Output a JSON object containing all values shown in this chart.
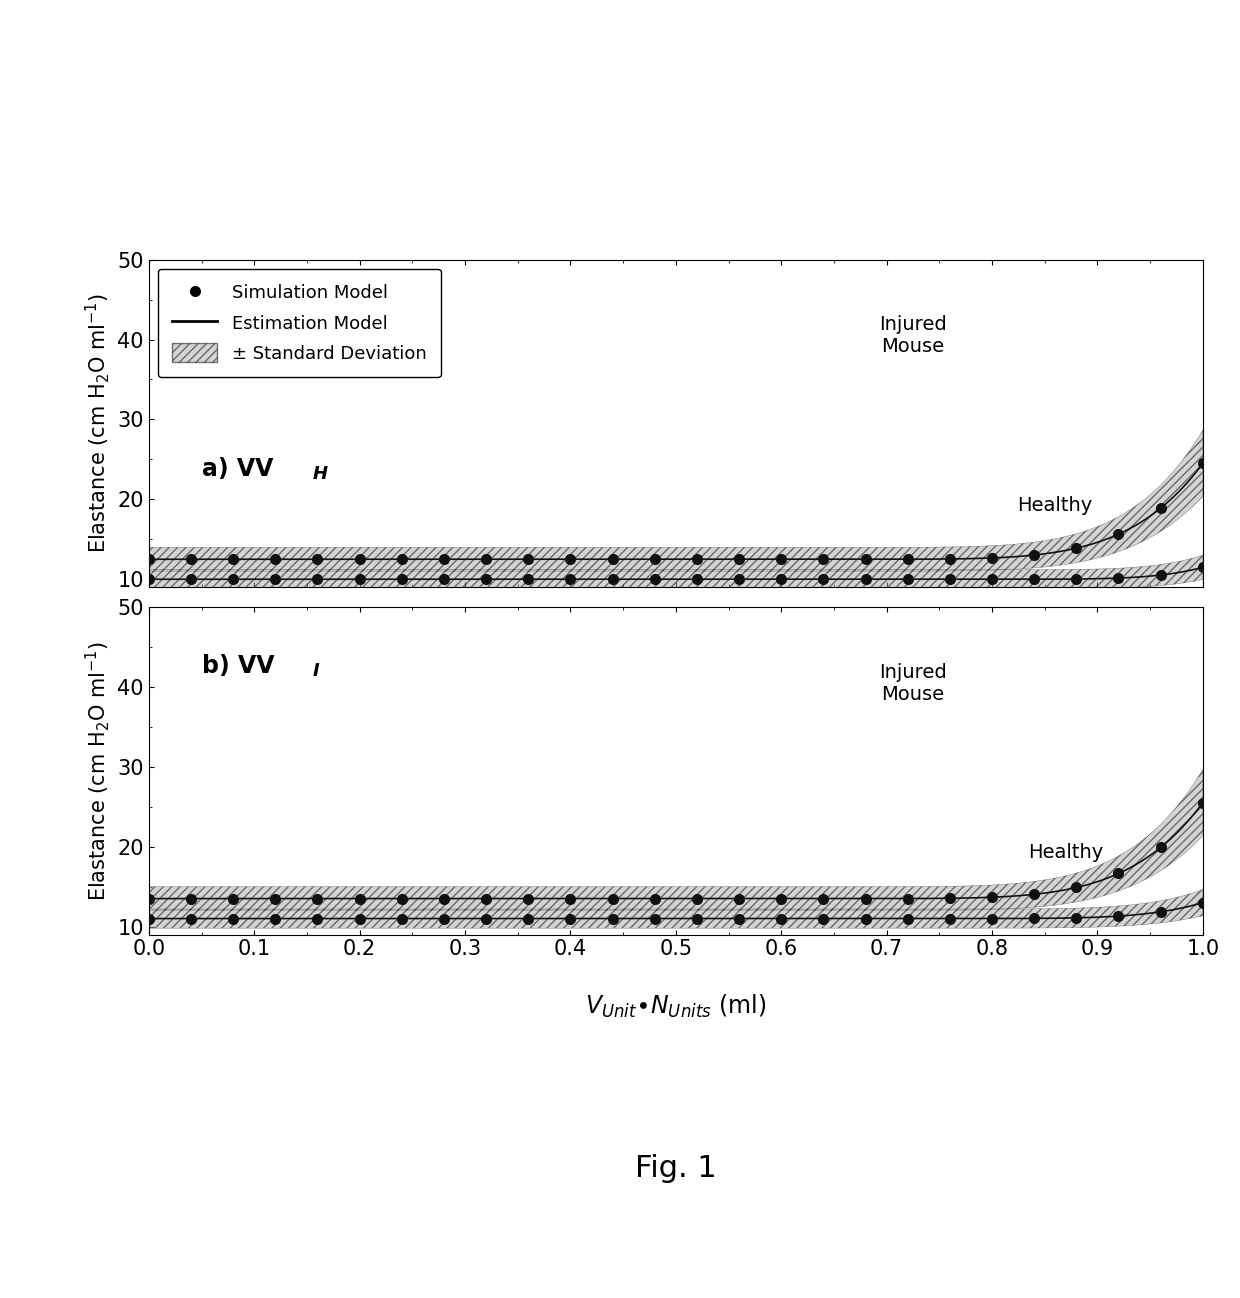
{
  "xlim": [
    0.0,
    1.0
  ],
  "ylim": [
    9,
    50
  ],
  "xticks": [
    0.0,
    0.1,
    0.2,
    0.3,
    0.4,
    0.5,
    0.6,
    0.7,
    0.8,
    0.9,
    1.0
  ],
  "yticks": [
    10,
    20,
    30,
    40,
    50
  ],
  "ylabel": "Elastance (cm H$_2$O ml$^{-1}$)",
  "label_a": "a) VV",
  "label_a_sub": "H",
  "label_b": "b) VV",
  "label_b_sub": "I",
  "fig_label": "Fig. 1",
  "legend_items": [
    "Simulation Model",
    "Estimation Model",
    "± Standard Deviation"
  ],
  "healthy_flat_a": 10.0,
  "healthy_std_a": 1.2,
  "injured_flat_a": 12.5,
  "injured_std_a": 1.5,
  "healthy_flat_b": 11.0,
  "healthy_std_b": 1.2,
  "injured_flat_b": 13.5,
  "injured_std_b": 1.5,
  "inj_curve_start_a": 0.63,
  "inj_k_a": 12.0,
  "inj_n_a": 5.5,
  "hlt_curve_start_a": 0.75,
  "hlt_k_a": 1.5,
  "hlt_n_a": 6.0,
  "inj_curve_start_b": 0.63,
  "inj_k_b": 12.0,
  "inj_n_b": 5.5,
  "hlt_curve_start_b": 0.7,
  "hlt_k_b": 2.0,
  "hlt_n_b": 6.0,
  "dot_color": "#111111",
  "line_color": "#111111",
  "fill_color": "#aaaaaa",
  "fill_alpha": 0.5,
  "hatch": "////",
  "bg_color": "#ffffff",
  "n_dots": 26,
  "figsize": [
    12.4,
    12.98
  ],
  "dpi": 100
}
